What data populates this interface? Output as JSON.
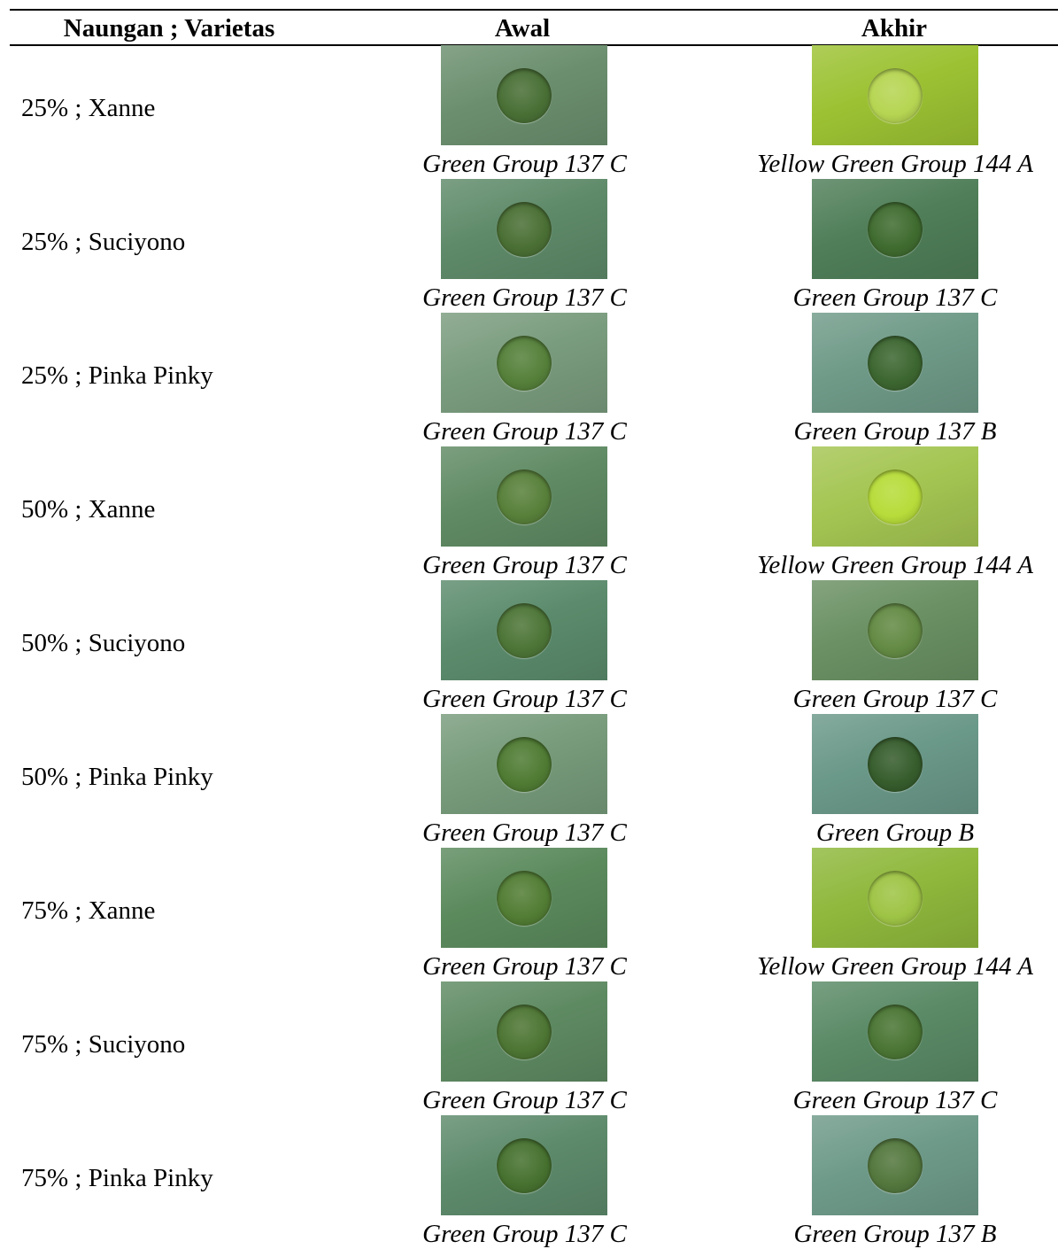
{
  "headers": {
    "col1": "Naungan ; Varietas",
    "col2": "Awal",
    "col3": "Akhir"
  },
  "rows": [
    {
      "label": "25% ; Xanne",
      "awal": "Green Group 137 C",
      "akhir": "Yellow Green Group 144 A",
      "awal_colors": {
        "bg": "#6b8f6e",
        "leaf": "#496f35"
      },
      "akhir_colors": {
        "bg": "#9cc233",
        "leaf": "#b6d552"
      }
    },
    {
      "label": "25% ; Suciyono",
      "awal": "Green Group 137 C",
      "akhir": "Green Group 137 C",
      "awal_colors": {
        "bg": "#5e8a69",
        "leaf": "#4a6f34"
      },
      "akhir_colors": {
        "bg": "#4f7e58",
        "leaf": "#3f6b2f"
      }
    },
    {
      "label": "25% ; Pinka Pinky",
      "awal": "Green Group 137 C",
      "akhir": "Green Group 137 B",
      "awal_colors": {
        "bg": "#7a9c7e",
        "leaf": "#55803a"
      },
      "akhir_colors": {
        "bg": "#6f9a88",
        "leaf": "#3c6630"
      }
    },
    {
      "label": "50% ; Xanne",
      "awal": "Green Group 137 C",
      "akhir": "Yellow Green Group 144 A",
      "awal_colors": {
        "bg": "#5f8a63",
        "leaf": "#58803a"
      },
      "akhir_colors": {
        "bg": "#a4c552",
        "leaf": "#b7dc3a"
      }
    },
    {
      "label": "50% ; Suciyono",
      "awal": "Green Group 137 C",
      "akhir": "Green Group 137 C",
      "awal_colors": {
        "bg": "#5b8b6c",
        "leaf": "#4d7537"
      },
      "akhir_colors": {
        "bg": "#6a9063",
        "leaf": "#638a44"
      }
    },
    {
      "label": "50% ; Pinka Pinky",
      "awal": "Green Group 137 C",
      "akhir": "Green Group B",
      "awal_colors": {
        "bg": "#779b7b",
        "leaf": "#4f7b33"
      },
      "akhir_colors": {
        "bg": "#6a9889",
        "leaf": "#365c2c"
      }
    },
    {
      "label": "75% ; Xanne",
      "awal": "Green Group 137 C",
      "akhir": "Yellow Green Group 144 A",
      "awal_colors": {
        "bg": "#5b8a5d",
        "leaf": "#527d34"
      },
      "akhir_colors": {
        "bg": "#8fb83c",
        "leaf": "#9ec445"
      }
    },
    {
      "label": "75% ; Suciyono",
      "awal": "Green Group 137 C",
      "akhir": "Green Group 137 C",
      "awal_colors": {
        "bg": "#5e8a62",
        "leaf": "#4d7533"
      },
      "akhir_colors": {
        "bg": "#5a8a66",
        "leaf": "#4a7534"
      }
    },
    {
      "label": "75% ; Pinka Pinky",
      "awal": "Green Group 137 C",
      "akhir": "Green Group 137 B",
      "awal_colors": {
        "bg": "#5d8a6b",
        "leaf": "#46712f"
      },
      "akhir_colors": {
        "bg": "#6e9a89",
        "leaf": "#53773d"
      }
    }
  ]
}
